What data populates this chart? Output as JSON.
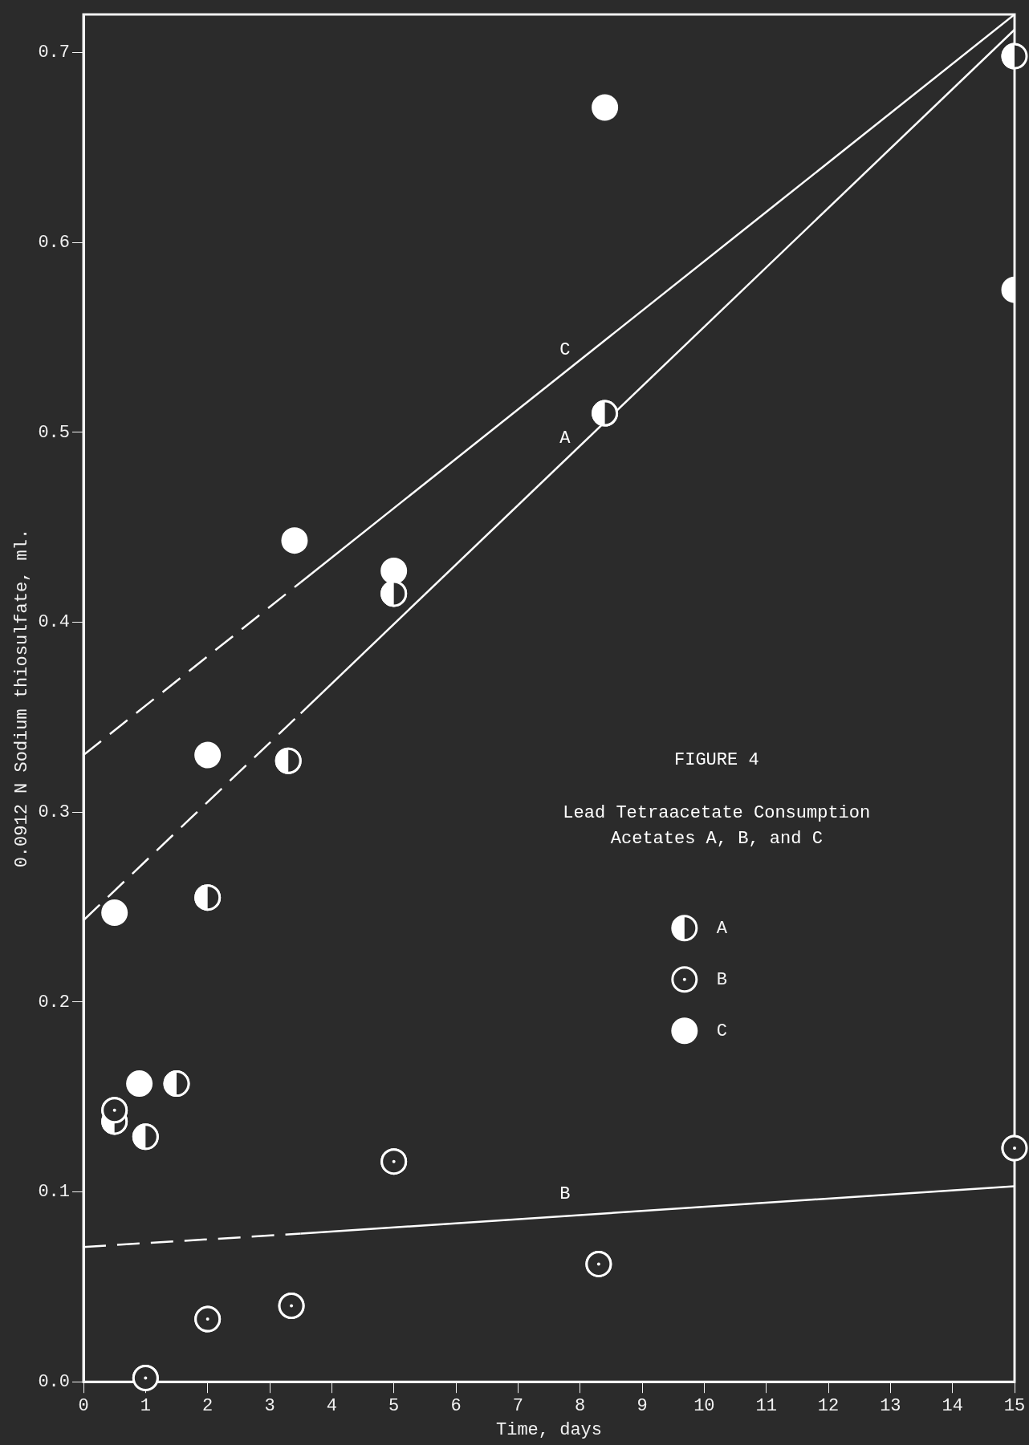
{
  "chart_data": {
    "type": "scatter",
    "title": "FIGURE 4",
    "subtitle": "Lead Tetraacetate Consumption\nAcetates A, B, and C",
    "xlabel": "Time, days",
    "ylabel": "0.0912 N Sodium thiosulfate, ml.",
    "xlim": [
      0,
      15
    ],
    "xticks": [
      0,
      1,
      2,
      3,
      4,
      5,
      6,
      7,
      8,
      9,
      10,
      11,
      12,
      13,
      14,
      15
    ],
    "ylim": [
      0,
      0.72
    ],
    "yticks": [
      {
        "value": 0,
        "label": "0.0"
      },
      {
        "value": 0.1,
        "label": "0.1"
      },
      {
        "value": 0.2,
        "label": "0.2"
      },
      {
        "value": 0.3,
        "label": "0.3"
      },
      {
        "value": 0.4,
        "label": "0.4"
      },
      {
        "value": 0.5,
        "label": "0.5"
      },
      {
        "value": 0.6,
        "label": "0.6"
      },
      {
        "value": 0.7,
        "label": "0.7"
      }
    ],
    "grid": false,
    "legend": "right",
    "marker": "circle",
    "series": [
      {
        "name": "A",
        "color": "#ffffff",
        "x": [
          0.5,
          1.0,
          1.5,
          2.0,
          3.3,
          5.0,
          8.4,
          15.0
        ],
        "values": [
          0.137,
          0.129,
          0.157,
          0.255,
          0.327,
          0.415,
          0.51,
          0.698
        ]
      },
      {
        "name": "B",
        "color": "#ffffff",
        "x": [
          0.5,
          1.0,
          2.0,
          3.35,
          5.0,
          8.3,
          15.0
        ],
        "values": [
          0.143,
          0.002,
          0.033,
          0.04,
          0.116,
          0.062,
          0.123
        ]
      },
      {
        "name": "C",
        "color": "#ffffff",
        "x": [
          0.5,
          0.9,
          2.0,
          3.4,
          5.0,
          8.4,
          15.0
        ],
        "values": [
          0.247,
          0.157,
          0.33,
          0.443,
          0.427,
          0.671,
          0.575
        ]
      },
      {
        "type": "line",
        "color": "#ffffff",
        "line_style": "dashed",
        "marker": "none",
        "x": [
          0,
          3.5
        ],
        "values": [
          0.33,
          0.421
        ]
      },
      {
        "type": "line",
        "name": "C",
        "color": "#ffffff",
        "line_style": "solid",
        "marker": "none",
        "x": [
          3.5,
          15
        ],
        "values": [
          0.421,
          0.72
        ]
      },
      {
        "type": "line",
        "color": "#ffffff",
        "line_style": "dashed",
        "marker": "none",
        "x": [
          0,
          3.5
        ],
        "values": [
          0.243,
          0.352
        ]
      },
      {
        "type": "line",
        "name": "A",
        "color": "#ffffff",
        "line_style": "solid",
        "marker": "none",
        "x": [
          3.5,
          15
        ],
        "values": [
          0.352,
          0.712
        ]
      },
      {
        "type": "line",
        "color": "#ffffff",
        "line_style": "dashed",
        "marker": "none",
        "x": [
          0,
          3.5
        ],
        "values": [
          0.071,
          0.078
        ]
      },
      {
        "type": "line",
        "name": "B",
        "color": "#ffffff",
        "line_style": "solid",
        "marker": "none",
        "x": [
          3.5,
          15
        ],
        "values": [
          0.078,
          0.103
        ]
      }
    ]
  }
}
